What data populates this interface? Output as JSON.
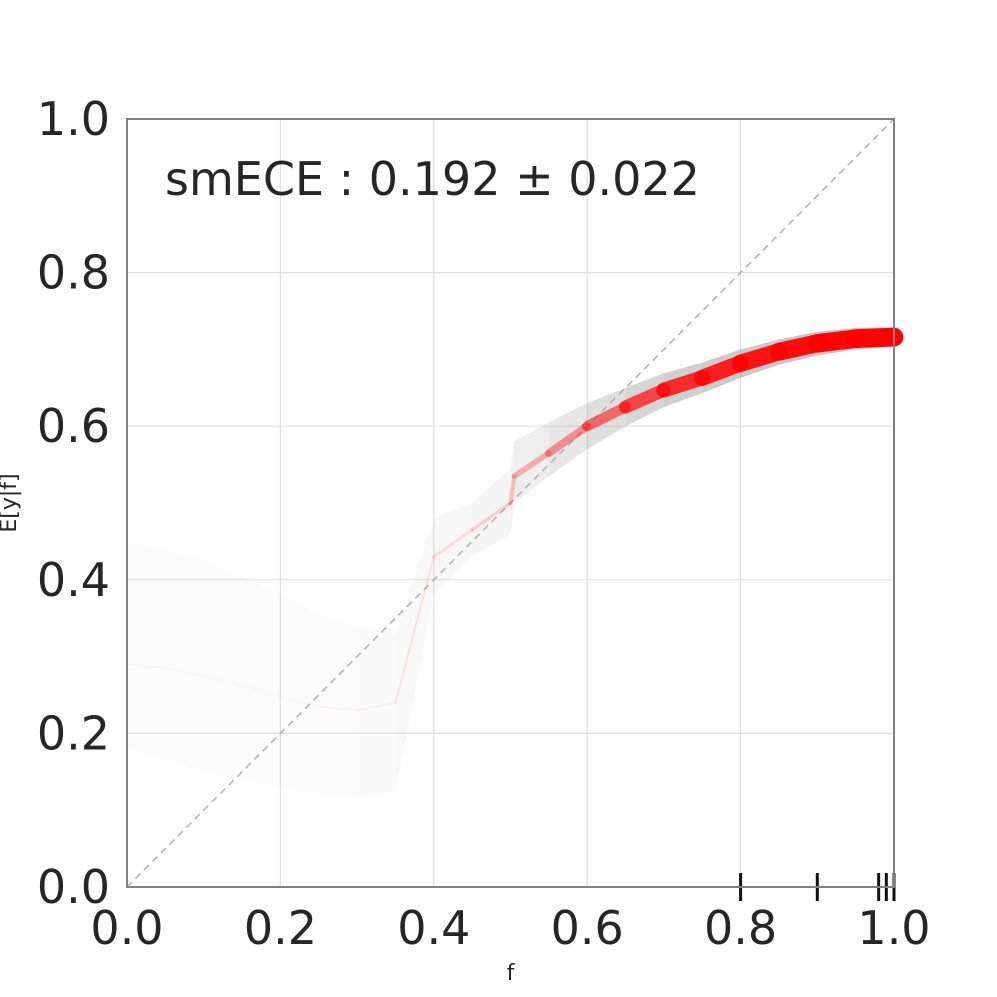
{
  "chart_data": {
    "type": "line",
    "xlabel": "f",
    "ylabel": "E[y|f]",
    "xlim": [
      0,
      1
    ],
    "ylim": [
      0,
      1
    ],
    "x_ticks": [
      "0.0",
      "0.2",
      "0.4",
      "0.6",
      "0.8",
      "1.0"
    ],
    "y_ticks": [
      "0.0",
      "0.2",
      "0.4",
      "0.6",
      "0.8",
      "1.0"
    ],
    "grid": true,
    "annotation": "smECE : 0.192 ± 0.022",
    "diagonal": {
      "from": [
        0,
        0
      ],
      "to": [
        1,
        1
      ],
      "style": "dashed"
    },
    "colors": {
      "curve": "#ff0000",
      "band": "#808080",
      "diagonal": "#b0b0b0",
      "grid": "#e0e0e0",
      "frame": "#808080"
    },
    "series": [
      {
        "x": [
          0.0,
          0.05,
          0.1,
          0.15,
          0.2,
          0.25,
          0.3,
          0.35,
          0.4,
          0.45,
          0.5,
          0.505,
          0.55,
          0.6,
          0.65,
          0.7,
          0.75,
          0.8,
          0.85,
          0.9,
          0.95,
          1.0
        ],
        "y": [
          0.29,
          0.285,
          0.275,
          0.262,
          0.248,
          0.235,
          0.23,
          0.24,
          0.43,
          0.465,
          0.5,
          0.535,
          0.565,
          0.6,
          0.625,
          0.647,
          0.663,
          0.682,
          0.697,
          0.708,
          0.714,
          0.716
        ],
        "lower": [
          0.18,
          0.165,
          0.15,
          0.14,
          0.13,
          0.12,
          0.115,
          0.125,
          0.38,
          0.43,
          0.46,
          0.5,
          0.535,
          0.57,
          0.6,
          0.625,
          0.643,
          0.663,
          0.68,
          0.692,
          0.7,
          0.704
        ],
        "upper": [
          0.45,
          0.44,
          0.425,
          0.405,
          0.38,
          0.355,
          0.34,
          0.33,
          0.48,
          0.5,
          0.545,
          0.58,
          0.605,
          0.63,
          0.65,
          0.669,
          0.683,
          0.7,
          0.713,
          0.723,
          0.728,
          0.729
        ],
        "density": [
          0.01,
          0.01,
          0.01,
          0.01,
          0.01,
          0.01,
          0.02,
          0.05,
          0.08,
          0.12,
          0.15,
          0.22,
          0.3,
          0.45,
          0.6,
          0.75,
          0.82,
          0.88,
          0.92,
          0.96,
          0.98,
          1.0
        ]
      }
    ],
    "rug": [
      0.8,
      0.9,
      0.98,
      0.99,
      1.0
    ]
  }
}
